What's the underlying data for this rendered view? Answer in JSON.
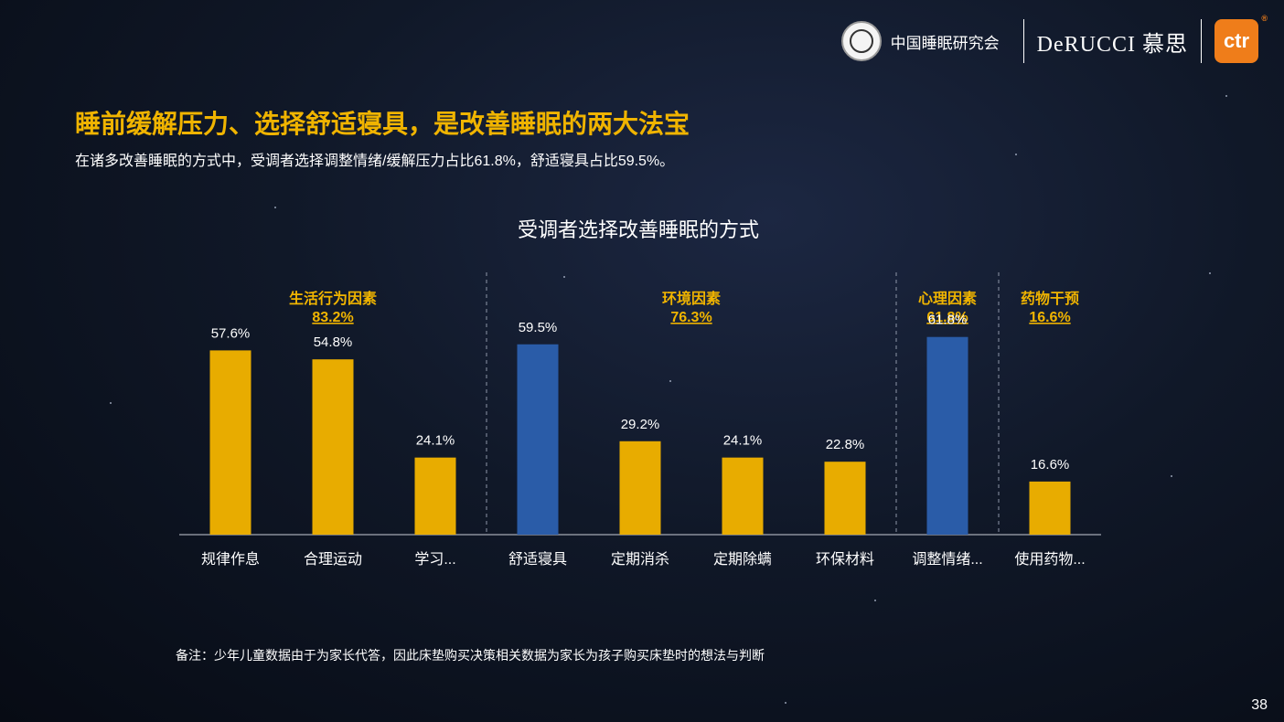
{
  "header": {
    "org_name": "中国睡眠研究会",
    "brand_name": "DeRUCCI 慕思",
    "ctr_logo": "ctr",
    "ctr_reg": "®",
    "seal_icon": "sleep-research-seal-icon"
  },
  "title": "睡前缓解压力、选择舒适寝具，是改善睡眠的两大法宝",
  "subtitle": "在诸多改善睡眠的方式中，受调者选择调整情绪/缓解压力占比61.8%，舒适寝具占比59.5%。",
  "chart_data": {
    "type": "bar",
    "title": "受调者选择改善睡眠的方式",
    "categories": [
      "规律作息",
      "合理运动",
      "学习...",
      "舒适寝具",
      "定期消杀",
      "定期除螨",
      "环保材料",
      "调整情绪...",
      "使用药物..."
    ],
    "values": [
      57.6,
      54.8,
      24.1,
      59.5,
      29.2,
      24.1,
      22.8,
      61.8,
      16.6
    ],
    "value_labels": [
      "57.6%",
      "54.8%",
      "24.1%",
      "59.5%",
      "29.2%",
      "24.1%",
      "22.8%",
      "61.8%",
      "16.6%"
    ],
    "highlight_colors": [
      "#e8ac00",
      "#e8ac00",
      "#e8ac00",
      "#2a5ca8",
      "#e8ac00",
      "#e8ac00",
      "#e8ac00",
      "#2a5ca8",
      "#e8ac00"
    ],
    "ylim": [
      0,
      70
    ],
    "groups": [
      {
        "name": "生活行为因素",
        "total": "83.2%",
        "start": 0,
        "end": 2
      },
      {
        "name": "环境因素",
        "total": "76.3%",
        "start": 3,
        "end": 6
      },
      {
        "name": "心理因素",
        "total": "61.8%",
        "start": 7,
        "end": 7
      },
      {
        "name": "药物干预",
        "total": "16.6%",
        "start": 8,
        "end": 8
      }
    ],
    "group_label_color": "#f0b400"
  },
  "footnote": "备注：少年儿童数据由于为家长代答，因此床垫购买决策相关数据为家长为孩子购买床垫时的想法与判断",
  "page_number": "38"
}
